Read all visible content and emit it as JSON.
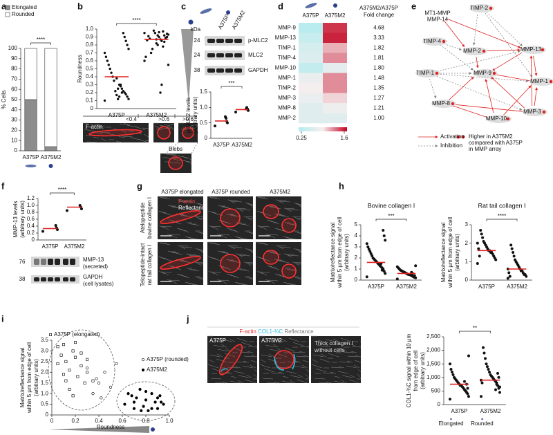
{
  "panel_letters": [
    "a",
    "b",
    "c",
    "d",
    "e",
    "f",
    "g",
    "h",
    "i",
    "j"
  ],
  "panel_b": {
    "bins": [
      "<0.4",
      ">0.6",
      ">0.6"
    ],
    "stain": "F-actin",
    "inset": "Blebs"
  },
  "panel_c": {
    "lanes": [
      "A375P",
      "A375M2"
    ],
    "kda": "kDa",
    "markers": [
      24,
      24,
      38
    ],
    "proteins": [
      "p-MLC2",
      "MLC2",
      "GAPDH"
    ]
  },
  "panel_e": {
    "nodes": [
      [
        "MT1-MMP",
        "MMP-14"
      ],
      [
        "TIMP-2"
      ],
      [
        "TIMP-4"
      ],
      [
        "MMP-2"
      ],
      [
        "MMP-13"
      ],
      [
        "TIMP-1"
      ],
      [
        "MMP-9"
      ],
      [
        "MMP-1"
      ],
      [
        "MMP-8"
      ],
      [
        "MMP-10"
      ],
      [
        "MMP-3"
      ]
    ],
    "legend": [
      "Activation",
      "Inhibition",
      "Higher in A375M2",
      "compared with A375P",
      "in MMP array"
    ]
  },
  "panel_f": {
    "markers": [
      76,
      38
    ],
    "bands": [
      [
        "MMP-13",
        "(secreted)"
      ],
      [
        "GAPDH",
        "(cell lysates)"
      ]
    ]
  },
  "panel_g": {
    "columns": [
      "A375P elongated",
      "A375P rounded",
      "A375M2"
    ],
    "rows": [
      [
        "Atelopeptide",
        "bovine collagen I"
      ],
      [
        "Telopeptide-intact",
        "rat tail collagen I"
      ]
    ],
    "overlay": [
      "F-actin",
      "Reflectance"
    ]
  },
  "panel_j": {
    "stains": [
      "F-actin",
      "COL1-¾C",
      "Reflectance"
    ],
    "images": [
      "A375P",
      "A375M2"
    ],
    "control": [
      "Thick collagen I",
      "without cells"
    ]
  },
  "chart_data": [
    {
      "type": "bar",
      "stacked": true,
      "legend": "top-left",
      "ylabel": [
        "% Cells"
      ],
      "categories": [
        "A375P",
        "A375M2"
      ],
      "series": [
        {
          "name": "Elongated",
          "color": "#8c8c8c",
          "values": [
            50,
            4
          ]
        },
        {
          "name": "Rounded",
          "color": "#ffffff",
          "values": [
            50,
            96
          ]
        }
      ],
      "ylim": [
        0,
        100
      ],
      "yticks": [
        0,
        10,
        20,
        30,
        40,
        50,
        60,
        70,
        80,
        90,
        100
      ],
      "significance": "****"
    },
    {
      "type": "dotplot",
      "ylabel": [
        "Roundness"
      ],
      "categories": [
        "A375P",
        "A375M2"
      ],
      "mean_color": "#e02020",
      "groups": [
        [
          0.1,
          0.12,
          0.15,
          0.18,
          0.2,
          0.22,
          0.25,
          0.28,
          0.3,
          0.12,
          0.17,
          0.22,
          0.35,
          0.4,
          0.45,
          0.5,
          0.55,
          0.6,
          0.65,
          0.7,
          0.75,
          0.8,
          0.85,
          0.9,
          0.95,
          0.2,
          0.3,
          0.15,
          0.25,
          0.38
        ],
        [
          0.95,
          0.93,
          0.9,
          0.88,
          0.92,
          0.97,
          0.85,
          0.87,
          0.9,
          0.8,
          0.82,
          0.95,
          0.98,
          0.75,
          0.7,
          0.88,
          0.91,
          0.86,
          0.65,
          0.6,
          0.55,
          0.94,
          0.89,
          0.84,
          0.78,
          0.3,
          0.2,
          0.96,
          0.92,
          0.87
        ]
      ],
      "means": [
        0.4,
        0.87
      ],
      "ylim": [
        0,
        1
      ],
      "yticks": [
        0,
        0.1,
        0.2,
        0.3,
        0.4,
        0.5,
        0.6,
        0.7,
        0.8,
        0.9,
        {
          "value": 1,
          "label": "1.0"
        }
      ],
      "significance": "****"
    },
    {
      "type": "dotplot",
      "ylabel": [
        "p-MLC2 levels",
        "(arbitrary units)"
      ],
      "categories": [
        "A375P",
        "A375M2"
      ],
      "mean_color": "#e02020",
      "groups": [
        [
          0.4,
          0.5,
          0.55,
          0.65,
          0.7
        ],
        [
          0.85,
          0.9,
          0.95,
          1.0,
          0.95
        ]
      ],
      "means": [
        0.56,
        0.93
      ],
      "ylim": [
        0,
        1.5
      ],
      "yticks": [
        0,
        0.5,
        {
          "value": 1,
          "label": "1.0"
        },
        1.5
      ],
      "significance": "***"
    },
    {
      "type": "heatmap",
      "columns": [
        "A375P",
        "A375M2"
      ],
      "categories": [
        "MMP-9",
        "MMP-13",
        "TIMP-1",
        "TIMP-4",
        "MMP-10",
        "MMP-1",
        "TIMP-2",
        "MMP-3",
        "MMP-8",
        "MMP-2"
      ],
      "z": [
        [
          0.3,
          1.45
        ],
        [
          0.45,
          1.5
        ],
        [
          0.6,
          1.1
        ],
        [
          0.65,
          1.2
        ],
        [
          0.4,
          0.75
        ],
        [
          0.8,
          1.2
        ],
        [
          0.9,
          1.2
        ],
        [
          0.8,
          1.0
        ],
        [
          0.7,
          0.85
        ],
        [
          0.7,
          0.7
        ]
      ],
      "clim": [
        0.25,
        1.6
      ],
      "colors": [
        "#b3ecee",
        "#f7eeee",
        "#c2001e"
      ],
      "value_header": [
        "A375M2/A375P",
        "Fold change"
      ],
      "values": [
        4.68,
        3.33,
        1.82,
        1.81,
        1.8,
        1.48,
        1.35,
        1.27,
        1.21,
        1
      ],
      "value_labels": [
        "4.68",
        "3.33",
        "1.82",
        "1.81",
        "1.80",
        "1.48",
        "1.35",
        "1.27",
        "1.21",
        "1.00"
      ]
    },
    {
      "type": "dotplot",
      "ylabel": [
        "MMP-13 levels",
        "(arbitrary units)"
      ],
      "categories": [
        "A375P",
        "A375M2"
      ],
      "mean_color": "#e02020",
      "groups": [
        [
          0.25,
          0.3,
          0.35,
          0.42
        ],
        [
          0.85,
          0.9,
          0.95,
          1.0
        ]
      ],
      "means": [
        0.33,
        0.95
      ],
      "ylim": [
        0,
        1.2
      ],
      "yticks": [
        0,
        0.2,
        0.4,
        0.6,
        0.8,
        {
          "value": 1,
          "label": "1.0"
        },
        1.2
      ],
      "significance": "****"
    },
    {
      "type": "dotplot",
      "title": "Bovine collagen I",
      "ylabel": [
        "Matrix/reflectance signal",
        "within 5 µm from edge of cell",
        "(arbitrary units)"
      ],
      "categories": [
        "A375P",
        "A375M2"
      ],
      "mean_color": "#e02020",
      "groups": [
        [
          0.3,
          0.6,
          0.8,
          1.0,
          1.1,
          1.2,
          1.3,
          1.4,
          1.5,
          1.6,
          1.7,
          1.8,
          1.9,
          2.0,
          2.2,
          2.4,
          2.6,
          2.8,
          3.0,
          3.3,
          3.6,
          4.0,
          4.5,
          0.9,
          1.5
        ],
        [
          0.1,
          0.2,
          0.25,
          0.3,
          0.35,
          0.4,
          0.45,
          0.5,
          0.5,
          0.55,
          0.6,
          0.65,
          0.7,
          0.75,
          0.8,
          0.85,
          0.9,
          1.0,
          1.1,
          1.2,
          1.3,
          0.4,
          0.3,
          0.6,
          0.7
        ]
      ],
      "means": [
        1.6,
        0.6
      ],
      "ylim": [
        0,
        5
      ],
      "yticks": [
        0,
        1,
        2,
        3,
        4,
        5
      ],
      "significance": "***"
    },
    {
      "type": "dotplot",
      "title": "Rat tail collagen I",
      "ylabel": [
        "Matrix/reflectance signal",
        "within 5 µm from edge of cell",
        "(arbitrary units)"
      ],
      "categories": [
        "A375P",
        "A375M2"
      ],
      "mean_color": "#e02020",
      "groups": [
        [
          0.9,
          1.1,
          1.2,
          1.3,
          1.4,
          1.5,
          1.5,
          1.6,
          1.6,
          1.7,
          1.8,
          1.9,
          2.0,
          2.1,
          2.3,
          2.5,
          2.7,
          1.3,
          1.7,
          2.0
        ],
        [
          0.1,
          0.2,
          0.3,
          0.3,
          0.4,
          0.5,
          0.5,
          0.6,
          0.7,
          0.8,
          0.9,
          1.0,
          1.1,
          1.3,
          1.5,
          1.7,
          1.9,
          0.2,
          0.4,
          0.6
        ]
      ],
      "means": [
        1.6,
        0.6
      ],
      "ylim": [
        0,
        3
      ],
      "yticks": [
        0,
        1,
        2,
        3
      ],
      "significance": "****"
    },
    {
      "type": "scatter",
      "xlabel": "Roundness",
      "ylabel": [
        "Matrix/reflectance signal",
        "within 5 µm from edge of cell",
        "(arbitrary units)"
      ],
      "xlim": [
        0,
        1
      ],
      "xticks": [
        0,
        0.2,
        0.4,
        0.6,
        0.8,
        {
          "value": 1,
          "label": "1.0"
        }
      ],
      "ylim": [
        0,
        3.5
      ],
      "yticks": [
        0,
        0.5,
        {
          "value": 1,
          "label": "1.0"
        },
        1.5,
        {
          "value": 2,
          "label": "2.0"
        },
        2.5,
        {
          "value": 3,
          "label": "3.0"
        },
        3.5
      ],
      "series": [
        {
          "name": "A375P (elongated)",
          "marker": "square-open",
          "color": "#000000",
          "x": [
            0.05,
            0.08,
            0.1,
            0.12,
            0.15,
            0.18,
            0.2,
            0.22,
            0.25,
            0.28,
            0.3,
            0.1,
            0.15,
            0.2,
            0.35,
            0.05,
            0.12,
            0.25,
            0.3,
            0.18
          ],
          "y": [
            3.2,
            2.8,
            3.3,
            2.5,
            2.1,
            3.0,
            2.7,
            1.8,
            2.3,
            1.5,
            2.0,
            1.9,
            1.2,
            3.4,
            1.6,
            2.4,
            1.6,
            2.9,
            2.6,
            0.9
          ]
        },
        {
          "name": "A375P (rounded)",
          "marker": "circle-open",
          "color": "#000000",
          "x": [
            0.3,
            0.4,
            0.45,
            0.5,
            0.35,
            0.55,
            0.42,
            0.38
          ],
          "y": [
            2.2,
            1.5,
            2.0,
            1.3,
            1.0,
            2.4,
            0.8,
            1.7
          ]
        },
        {
          "name": "A375M2",
          "marker": "circle",
          "color": "#000000",
          "x": [
            0.62,
            0.65,
            0.7,
            0.72,
            0.75,
            0.78,
            0.8,
            0.82,
            0.85,
            0.88,
            0.9,
            0.92,
            0.95,
            0.7,
            0.8,
            0.85,
            0.9,
            0.68,
            0.76,
            0.93
          ],
          "y": [
            0.5,
            1.0,
            0.3,
            0.8,
            1.2,
            0.4,
            0.7,
            0.2,
            1.0,
            0.6,
            0.3,
            0.9,
            0.5,
            0.6,
            1.1,
            0.3,
            0.8,
            0.9,
            0.2,
            0.6
          ]
        }
      ]
    },
    {
      "type": "dotplot",
      "ylabel": [
        "COL1-¾C signal within 10 µm",
        "from edge of cell",
        "(arbitrary units)"
      ],
      "categories": [
        "A375P",
        "A375M2"
      ],
      "sublabels": [
        "Elongated",
        "Rounded"
      ],
      "mean_color": "#e02020",
      "groups": [
        [
          200,
          300,
          400,
          450,
          500,
          550,
          600,
          650,
          700,
          700,
          750,
          800,
          850,
          900,
          950,
          1000,
          1100,
          1200,
          1300,
          1500,
          1800,
          600,
          750,
          500,
          850
        ],
        [
          300,
          450,
          600,
          700,
          800,
          850,
          900,
          950,
          1000,
          1050,
          1100,
          1200,
          1300,
          1400,
          1500,
          1700,
          1900,
          2100,
          800,
          900,
          650,
          1000,
          1150,
          750,
          550
        ]
      ],
      "means": [
        750,
        900
      ],
      "ylim": [
        0,
        2500
      ],
      "yticks": [
        0,
        500,
        {
          "value": 1000,
          "label": "1,000"
        },
        {
          "value": 1500,
          "label": "1,500"
        },
        {
          "value": 2000,
          "label": "2,000"
        },
        {
          "value": 2500,
          "label": "2,500"
        }
      ],
      "significance": "**"
    }
  ]
}
